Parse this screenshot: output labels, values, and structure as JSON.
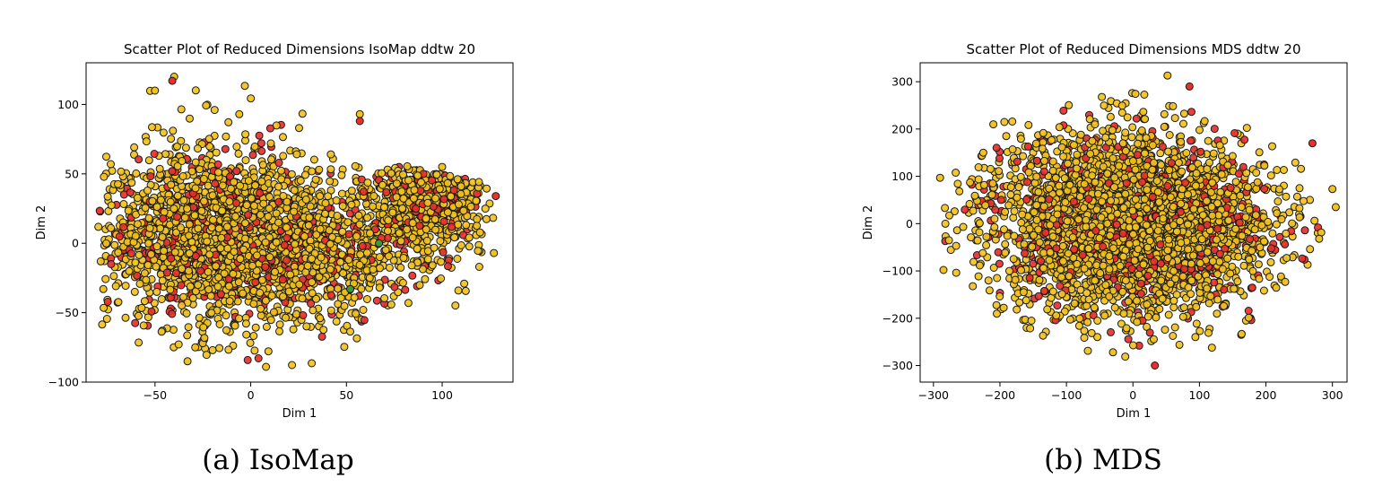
{
  "chart_data": [
    {
      "type": "scatter",
      "title": "Scatter Plot of Reduced Dimensions IsoMap ddtw 20",
      "xlabel": "Dim 1",
      "ylabel": "Dim 2",
      "xlim": [
        -86,
        137
      ],
      "ylim": [
        -100,
        130
      ],
      "xticks": [
        -50,
        0,
        50,
        100
      ],
      "yticks": [
        -100,
        -50,
        0,
        50,
        100
      ],
      "grid": false,
      "caption": "(a) IsoMap",
      "colors": {
        "gold": "#f2c21d",
        "red": "#e8302c",
        "green": "#3d9b35",
        "edge": "#1a1a1a"
      },
      "series": [
        {
          "color": "gold",
          "count": 2600,
          "shape": "isomap"
        },
        {
          "color": "red",
          "count": 520,
          "shape": "isomap"
        }
      ],
      "highlight_points": [
        {
          "x": -40,
          "y": 120
        },
        {
          "x": -41,
          "y": 117
        },
        {
          "x": 57,
          "y": 93
        },
        {
          "x": -6,
          "y": 93
        },
        {
          "x": 127,
          "y": -7
        },
        {
          "x": 128,
          "y": 34
        },
        {
          "x": -77,
          "y": -33
        },
        {
          "x": -33,
          "y": -85
        },
        {
          "x": 8,
          "y": -89
        },
        {
          "x": 57,
          "y": 88
        },
        {
          "x": -50,
          "y": 110
        },
        {
          "x": 100,
          "y": 55
        }
      ]
    },
    {
      "type": "scatter",
      "title": "Scatter Plot of Reduced Dimensions MDS ddtw 20",
      "xlabel": "Dim 1",
      "ylabel": "Dim 2",
      "xlim": [
        -320,
        322
      ],
      "ylim": [
        -335,
        340
      ],
      "xticks": [
        -300,
        -200,
        -100,
        0,
        100,
        200,
        300
      ],
      "yticks": [
        -300,
        -200,
        -100,
        0,
        100,
        200,
        300
      ],
      "grid": false,
      "caption": "(b) MDS",
      "colors": {
        "gold": "#f2c21d",
        "red": "#e8302c",
        "edge": "#1a1a1a"
      },
      "series": [
        {
          "color": "gold",
          "count": 2800,
          "shape": "mds"
        },
        {
          "color": "red",
          "count": 560,
          "shape": "mds"
        }
      ],
      "highlight_points": [
        {
          "x": 52,
          "y": 313
        },
        {
          "x": 85,
          "y": 290
        },
        {
          "x": -290,
          "y": 97
        },
        {
          "x": 305,
          "y": 35
        },
        {
          "x": 300,
          "y": 73
        },
        {
          "x": 33,
          "y": -300
        },
        {
          "x": -30,
          "y": -272
        },
        {
          "x": -285,
          "y": -98
        },
        {
          "x": -210,
          "y": 210
        },
        {
          "x": 270,
          "y": 170
        },
        {
          "x": -225,
          "y": 150
        },
        {
          "x": 280,
          "y": -32
        }
      ]
    }
  ]
}
